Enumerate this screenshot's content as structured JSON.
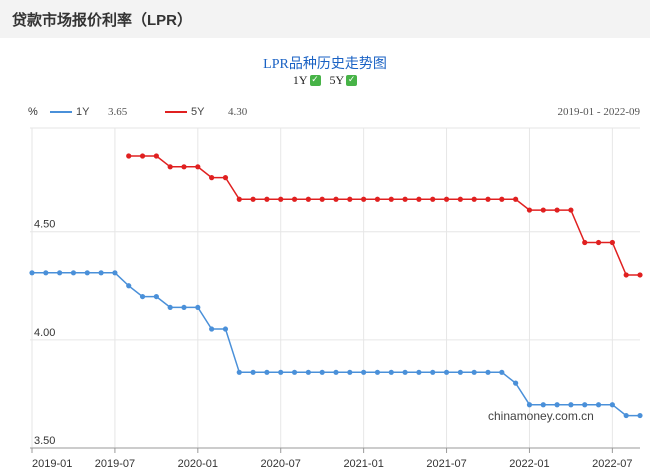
{
  "header": {
    "title": "贷款市场报价利率（LPR）"
  },
  "chart_title": "LPR品种历史走势图",
  "toggles": [
    {
      "label": "1Y",
      "checked": true
    },
    {
      "label": "5Y",
      "checked": true
    }
  ],
  "legend": {
    "unit": "%",
    "items": [
      {
        "name": "1Y",
        "value": "3.65",
        "color": "#4a90d9"
      },
      {
        "name": "5Y",
        "value": "4.30",
        "color": "#e02020"
      }
    ],
    "range": "2019-01 - 2022-09"
  },
  "watermark": "chinamoney.com.cn",
  "chart_data": {
    "type": "line",
    "ylim": [
      3.5,
      4.85
    ],
    "y_ticks": [
      3.5,
      4.0,
      4.5
    ],
    "y_tick_labels": [
      "3.50",
      "4.00",
      "4.50"
    ],
    "x_ticks": [
      "2019-01",
      "2019-07",
      "2020-01",
      "2020-07",
      "2021-01",
      "2021-07",
      "2022-01",
      "2022-07"
    ],
    "x": [
      "2019-01",
      "2019-02",
      "2019-03",
      "2019-04",
      "2019-05",
      "2019-06",
      "2019-07",
      "2019-08",
      "2019-09",
      "2019-10",
      "2019-11",
      "2019-12",
      "2020-01",
      "2020-02",
      "2020-03",
      "2020-04",
      "2020-05",
      "2020-06",
      "2020-07",
      "2020-08",
      "2020-09",
      "2020-10",
      "2020-11",
      "2020-12",
      "2021-01",
      "2021-02",
      "2021-03",
      "2021-04",
      "2021-05",
      "2021-06",
      "2021-07",
      "2021-08",
      "2021-09",
      "2021-10",
      "2021-11",
      "2021-12",
      "2022-01",
      "2022-02",
      "2022-03",
      "2022-04",
      "2022-05",
      "2022-06",
      "2022-07",
      "2022-08",
      "2022-09"
    ],
    "series": [
      {
        "name": "1Y",
        "color": "#4a90d9",
        "values": [
          4.31,
          4.31,
          4.31,
          4.31,
          4.31,
          4.31,
          4.31,
          4.25,
          4.2,
          4.2,
          4.15,
          4.15,
          4.15,
          4.05,
          4.05,
          3.85,
          3.85,
          3.85,
          3.85,
          3.85,
          3.85,
          3.85,
          3.85,
          3.85,
          3.85,
          3.85,
          3.85,
          3.85,
          3.85,
          3.85,
          3.85,
          3.85,
          3.85,
          3.85,
          3.85,
          3.8,
          3.7,
          3.7,
          3.7,
          3.7,
          3.7,
          3.7,
          3.7,
          3.65,
          3.65
        ]
      },
      {
        "name": "5Y",
        "color": "#e02020",
        "values": [
          null,
          null,
          null,
          null,
          null,
          null,
          null,
          4.85,
          4.85,
          4.85,
          4.8,
          4.8,
          4.8,
          4.75,
          4.75,
          4.65,
          4.65,
          4.65,
          4.65,
          4.65,
          4.65,
          4.65,
          4.65,
          4.65,
          4.65,
          4.65,
          4.65,
          4.65,
          4.65,
          4.65,
          4.65,
          4.65,
          4.65,
          4.65,
          4.65,
          4.65,
          4.6,
          4.6,
          4.6,
          4.6,
          4.45,
          4.45,
          4.45,
          4.3,
          4.3
        ]
      }
    ]
  }
}
